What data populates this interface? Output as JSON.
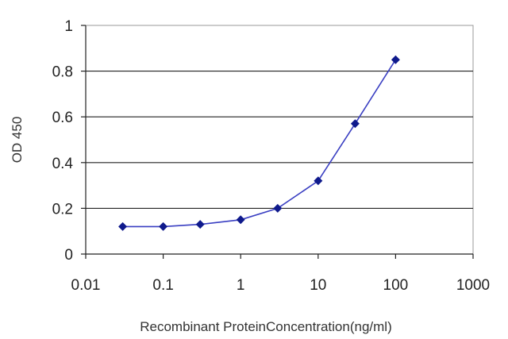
{
  "chart_data": {
    "type": "line",
    "title": "",
    "xlabel": "Recombinant ProteinConcentration(ng/ml)",
    "ylabel": "OD 450",
    "x_scale": "log",
    "xlim": [
      0.01,
      1000
    ],
    "ylim": [
      0,
      1
    ],
    "x_ticks": [
      "0.01",
      "0.1",
      "1",
      "10",
      "100",
      "1000"
    ],
    "y_ticks": [
      "0",
      "0.2",
      "0.4",
      "0.6",
      "0.8",
      "1"
    ],
    "grid": "horizontal",
    "legend": "none",
    "series": [
      {
        "x": [
          0.03,
          0.1,
          0.3,
          1,
          3,
          10,
          30,
          100
        ],
        "y": [
          0.12,
          0.12,
          0.13,
          0.15,
          0.2,
          0.32,
          0.57,
          0.85
        ]
      }
    ],
    "colors": {
      "line": "#3a3fc2",
      "marker": "#0f1a8c",
      "grid": "#222222",
      "frame": "#999999"
    }
  }
}
